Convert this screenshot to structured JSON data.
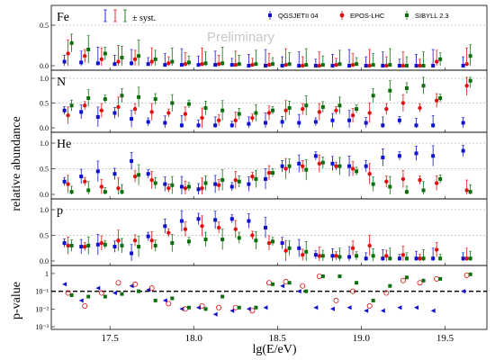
{
  "chart_data": {
    "type": "scatter",
    "xlabel": "lg(E/eV)",
    "xlim": [
      17.15,
      19.75
    ],
    "xticks": [
      "17.5",
      "18.0",
      "18.5",
      "19.0",
      "19.5"
    ],
    "x": [
      17.25,
      17.35,
      17.45,
      17.55,
      17.65,
      17.75,
      17.85,
      17.95,
      18.05,
      18.15,
      18.25,
      18.35,
      18.45,
      18.55,
      18.65,
      18.75,
      18.85,
      18.95,
      19.05,
      19.15,
      19.25,
      19.35,
      19.45,
      19.63
    ],
    "ylabel": "relative abundance",
    "watermark": "Preliminary",
    "syst_label": "± syst.",
    "legend": [
      {
        "name": "QGSJETII 04",
        "color": "#1010d0",
        "marker": "square"
      },
      {
        "name": "EPOS-LHC",
        "color": "#e01010",
        "marker": "circle"
      },
      {
        "name": "SIBYLL 2.3",
        "color": "#0c6e0c",
        "marker": "square"
      }
    ],
    "panels": [
      {
        "element": "Fe",
        "yticks": [
          "0.0",
          "0.5"
        ],
        "series": [
          {
            "name": "QGSJETII 04",
            "values": [
              0.05,
              0.04,
              0.03,
              0.02,
              0.03,
              0.02,
              0.01,
              0.01,
              0.01,
              0.01,
              0.01,
              0.0,
              0.0,
              0.0,
              0.0,
              0.0,
              0.0,
              0.0,
              0.0,
              0.0,
              0.0,
              0.0,
              0.0,
              0.0
            ]
          },
          {
            "name": "EPOS-LHC",
            "values": [
              0.15,
              0.12,
              0.08,
              0.05,
              0.08,
              0.05,
              0.03,
              0.02,
              0.02,
              0.02,
              0.01,
              0.01,
              0.01,
              0.01,
              0.0,
              0.0,
              0.01,
              0.01,
              0.0,
              0.0,
              0.0,
              0.0,
              0.05,
              0.02
            ]
          },
          {
            "name": "SIBYLL 2.3",
            "values": [
              0.28,
              0.2,
              0.15,
              0.1,
              0.12,
              0.08,
              0.05,
              0.04,
              0.03,
              0.03,
              0.02,
              0.02,
              0.02,
              0.02,
              0.01,
              0.01,
              0.02,
              0.02,
              0.01,
              0.01,
              0.0,
              0.0,
              0.08,
              0.12
            ]
          }
        ]
      },
      {
        "element": "N",
        "yticks": [
          "0.0",
          "0.5",
          "1.0"
        ],
        "series": [
          {
            "name": "QGSJETII 04",
            "values": [
              0.35,
              0.32,
              0.22,
              0.3,
              0.18,
              0.12,
              0.1,
              0.05,
              0.05,
              0.05,
              0.05,
              0.08,
              0.1,
              0.12,
              0.1,
              0.12,
              0.15,
              0.15,
              0.1,
              0.05,
              0.15,
              0.05,
              0.05,
              0.1
            ]
          },
          {
            "name": "EPOS-LHC",
            "values": [
              0.25,
              0.45,
              0.35,
              0.42,
              0.38,
              0.32,
              0.3,
              0.28,
              0.2,
              0.15,
              0.15,
              0.2,
              0.3,
              0.35,
              0.38,
              0.32,
              0.35,
              0.25,
              0.3,
              0.38,
              0.5,
              0.4,
              0.55,
              0.85
            ]
          },
          {
            "name": "SIBYLL 2.3",
            "values": [
              0.45,
              0.6,
              0.58,
              0.65,
              0.62,
              0.58,
              0.5,
              0.48,
              0.4,
              0.35,
              0.28,
              0.3,
              0.35,
              0.4,
              0.45,
              0.42,
              0.45,
              0.38,
              0.65,
              0.75,
              0.8,
              0.85,
              0.6,
              0.95
            ]
          }
        ]
      },
      {
        "element": "He",
        "yticks": [
          "0.0",
          "0.5",
          "1.0"
        ],
        "series": [
          {
            "name": "QGSJETII 04",
            "values": [
              0.25,
              0.35,
              0.45,
              0.4,
              0.65,
              0.4,
              0.2,
              0.15,
              0.1,
              0.2,
              0.15,
              0.2,
              0.3,
              0.55,
              0.6,
              0.75,
              0.6,
              0.55,
              0.55,
              0.72,
              0.75,
              0.8,
              0.75,
              0.85
            ]
          },
          {
            "name": "EPOS-LHC",
            "values": [
              0.2,
              0.25,
              0.15,
              0.12,
              0.35,
              0.28,
              0.12,
              0.12,
              0.12,
              0.18,
              0.28,
              0.35,
              0.42,
              0.5,
              0.55,
              0.6,
              0.55,
              0.5,
              0.4,
              0.25,
              0.3,
              0.28,
              0.22,
              0.08
            ]
          },
          {
            "name": "SIBYLL 2.3",
            "values": [
              0.05,
              0.08,
              0.05,
              0.05,
              0.38,
              0.22,
              0.18,
              0.15,
              0.22,
              0.28,
              0.25,
              0.3,
              0.42,
              0.55,
              0.48,
              0.62,
              0.55,
              0.45,
              0.2,
              0.15,
              0.05,
              0.08,
              0.3,
              0.05
            ]
          }
        ]
      },
      {
        "element": "p",
        "yticks": [
          "0.0",
          "0.5",
          "1.0"
        ],
        "series": [
          {
            "name": "QGSJETII 04",
            "values": [
              0.35,
              0.28,
              0.32,
              0.28,
              0.15,
              0.48,
              0.68,
              0.78,
              0.82,
              0.8,
              0.82,
              0.78,
              0.65,
              0.35,
              0.25,
              0.12,
              0.1,
              0.08,
              0.05,
              0.05,
              0.05,
              0.05,
              0.05,
              0.05
            ]
          },
          {
            "name": "EPOS-LHC",
            "values": [
              0.3,
              0.28,
              0.35,
              0.4,
              0.4,
              0.4,
              0.55,
              0.62,
              0.68,
              0.65,
              0.62,
              0.5,
              0.35,
              0.2,
              0.12,
              0.1,
              0.1,
              0.25,
              0.3,
              0.1,
              0.12,
              0.05,
              0.22,
              0.05
            ]
          },
          {
            "name": "SIBYLL 2.3",
            "values": [
              0.3,
              0.3,
              0.32,
              0.3,
              0.28,
              0.3,
              0.35,
              0.38,
              0.42,
              0.42,
              0.45,
              0.4,
              0.38,
              0.25,
              0.18,
              0.1,
              0.08,
              0.1,
              0.1,
              0.05,
              0.05,
              0.05,
              0.05,
              0.05
            ]
          }
        ]
      }
    ],
    "pvalue_panel": {
      "ylabel": "p-value",
      "yscale": "log",
      "ylim": [
        0.001,
        2
      ],
      "threshold": 0.1,
      "yticks": [
        "1",
        "10⁻¹",
        "10⁻²",
        "10⁻³"
      ],
      "series": [
        {
          "name": "QGSJETII 04",
          "marker": "triangle",
          "color": "#1010d0",
          "values": [
            0.25,
            0.03,
            0.15,
            0.08,
            0.2,
            0.12,
            0.03,
            0.01,
            0.012,
            0.005,
            0.008,
            0.01,
            0.012,
            0.2,
            0.1,
            0.012,
            0.01,
            0.012,
            0.008,
            0.008,
            0.012,
            0.012,
            0.008,
            0.1
          ]
        },
        {
          "name": "EPOS-LHC",
          "marker": "open-circle",
          "color": "#e01010",
          "values": [
            0.08,
            0.015,
            0.08,
            0.3,
            0.25,
            0.15,
            0.02,
            0.01,
            0.015,
            0.012,
            0.012,
            0.008,
            0.3,
            0.35,
            0.2,
            0.7,
            0.03,
            0.1,
            0.015,
            0.08,
            0.4,
            0.3,
            0.5,
            0.8
          ]
        },
        {
          "name": "SIBYLL 2.3",
          "marker": "square",
          "color": "#0c6e0c",
          "values": [
            0.06,
            0.05,
            0.05,
            0.07,
            0.1,
            0.03,
            0.04,
            0.012,
            0.01,
            0.05,
            0.012,
            0.012,
            0.25,
            0.3,
            0.1,
            0.7,
            0.7,
            0.3,
            0.03,
            0.2,
            0.6,
            0.4,
            0.5,
            0.9
          ]
        }
      ]
    }
  }
}
